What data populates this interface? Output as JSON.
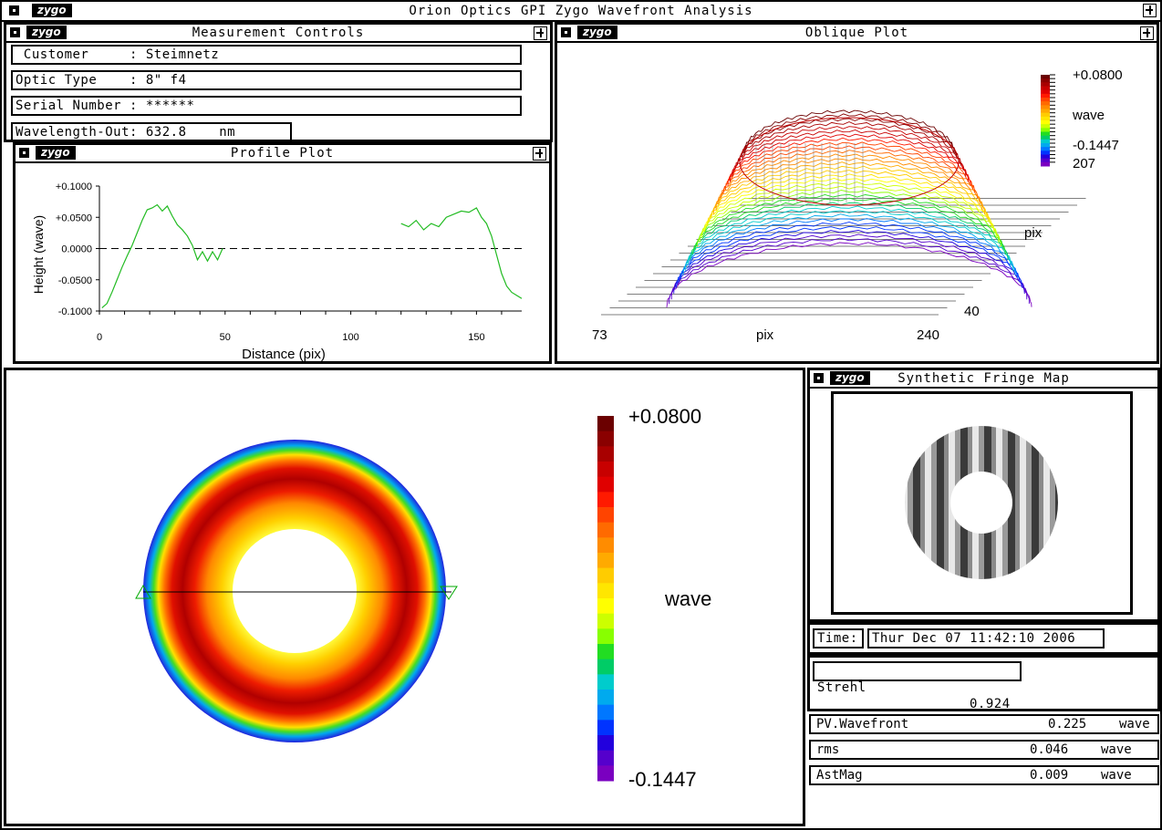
{
  "app": {
    "title": "Orion Optics GPI Zygo Wavefront Analysis",
    "logo": "zygo"
  },
  "measurement_controls": {
    "title": "Measurement Controls",
    "fields": [
      {
        "label": " Customer     ",
        "value": ": Steimnetz"
      },
      {
        "label": "Optic Type    ",
        "value": ": 8\" f4"
      },
      {
        "label": "Serial Number ",
        "value": ": ******"
      },
      {
        "label": "Wavelength-Out",
        "value": ": 632.8    nm"
      }
    ]
  },
  "profile_plot": {
    "title": "Profile Plot",
    "chart_data": {
      "type": "line",
      "xlabel": "Distance (pix)",
      "ylabel": "Height (wave)",
      "xlim": [
        0,
        168
      ],
      "ylim": [
        -0.1,
        0.1
      ],
      "x_ticks": [
        "0",
        "50",
        "100",
        "150"
      ],
      "y_ticks": [
        "+0.1000",
        "+0.0500",
        "0.0000",
        "-0.0500",
        "-0.1000"
      ],
      "series": [
        {
          "segment": 1,
          "x": [
            1,
            3,
            5,
            7,
            9,
            11,
            13,
            15,
            17,
            19,
            21,
            23,
            25,
            27,
            29,
            31,
            33,
            35,
            37,
            39,
            41,
            43,
            45,
            47,
            49
          ],
          "y": [
            -0.095,
            -0.088,
            -0.07,
            -0.05,
            -0.03,
            -0.012,
            0.005,
            0.025,
            0.045,
            0.062,
            0.065,
            0.07,
            0.06,
            0.068,
            0.052,
            0.038,
            0.03,
            0.02,
            0.005,
            -0.018,
            -0.005,
            -0.02,
            -0.005,
            -0.018,
            0.0
          ]
        },
        {
          "segment": 2,
          "x": [
            120,
            123,
            126,
            129,
            132,
            135,
            138,
            141,
            144,
            147,
            150,
            152,
            154,
            156,
            158,
            160,
            162,
            164,
            166,
            168
          ],
          "y": [
            0.04,
            0.035,
            0.045,
            0.03,
            0.04,
            0.035,
            0.05,
            0.055,
            0.06,
            0.058,
            0.065,
            0.05,
            0.04,
            0.02,
            -0.01,
            -0.04,
            -0.06,
            -0.07,
            -0.075,
            -0.08
          ]
        }
      ],
      "reference_line": 0.0
    }
  },
  "oblique_plot": {
    "title": "Oblique Plot",
    "scale_max": "+0.0800",
    "scale_unit": "wave",
    "scale_min": "-0.1447",
    "x_start": "73",
    "x_label": "pix",
    "x_end": "240",
    "y_start": "40",
    "y_label": "pix",
    "y_end": "207"
  },
  "contour_map": {
    "scale_max": "+0.0800",
    "scale_unit": "wave",
    "scale_min": "-0.1447"
  },
  "fringe_map": {
    "title": "Synthetic Fringe Map"
  },
  "time": {
    "label": "Time:",
    "value": "Thur Dec 07 11:42:10 2006"
  },
  "strehl": {
    "label": "Strehl",
    "value": "0.924"
  },
  "results": [
    {
      "label": "PV.Wavefront",
      "value": "0.225",
      "unit": "wave"
    },
    {
      "label": "rms",
      "value": "0.046",
      "unit": "wave"
    },
    {
      "label": "AstMag",
      "value": "0.009",
      "unit": "wave"
    }
  ],
  "colors": {
    "colorbar": [
      "#6b0000",
      "#8a0000",
      "#a80000",
      "#c80000",
      "#e00000",
      "#ff1a00",
      "#ff4400",
      "#ff6a00",
      "#ff8c00",
      "#ffaa00",
      "#ffcc00",
      "#ffe600",
      "#ffff00",
      "#ccff00",
      "#88ff00",
      "#22dd22",
      "#00cc66",
      "#00cccc",
      "#00aaee",
      "#0077ff",
      "#0033ff",
      "#2200dd",
      "#5500cc",
      "#7a00c0"
    ],
    "profile_line": "#22bb22"
  }
}
